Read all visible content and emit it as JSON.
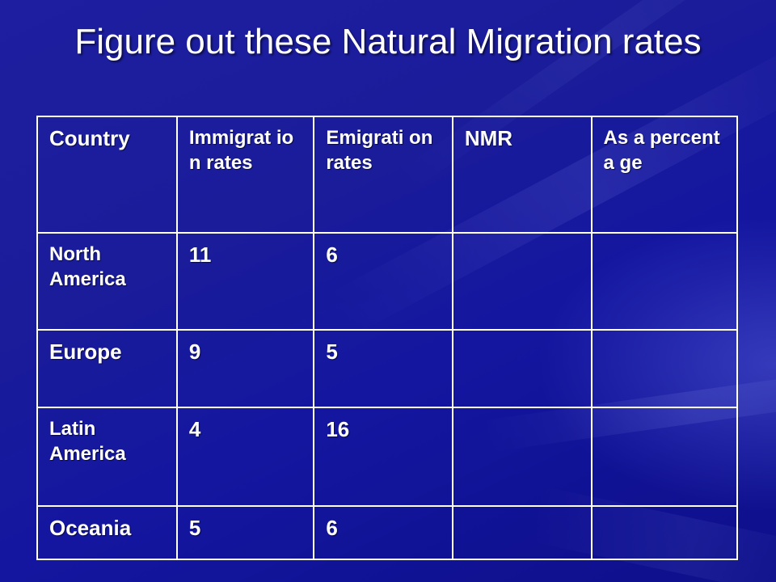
{
  "title": "Figure out these Natural Migration rates",
  "table": {
    "headers": [
      "Country",
      "Immigrat ion rates",
      "Emigrati on rates",
      "NMR",
      "As a percenta ge"
    ],
    "rows": [
      [
        "North America",
        "11",
        "6",
        "",
        ""
      ],
      [
        "Europe",
        "9",
        "5",
        "",
        ""
      ],
      [
        "Latin America",
        "4",
        "16",
        "",
        ""
      ],
      [
        "Oceania",
        "5",
        "6",
        "",
        ""
      ]
    ]
  },
  "colors": {
    "background": "#1a1c9a",
    "text": "#ffffff",
    "grid": "#ffffff"
  }
}
